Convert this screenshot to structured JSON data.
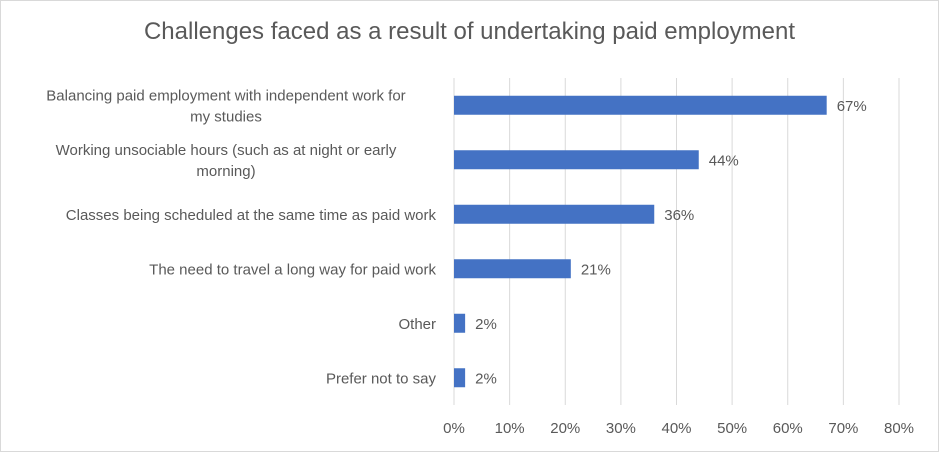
{
  "chart_data": {
    "type": "bar",
    "orientation": "horizontal",
    "title": "Challenges faced as a result of undertaking paid employment",
    "categories": [
      "Balancing paid employment with independent work for my studies",
      "Working unsociable hours (such as at night or early morning)",
      "Classes being scheduled at the same time as paid work",
      "The need to travel a long way for paid work",
      "Other",
      "Prefer not to say"
    ],
    "category_label_lines": [
      [
        "Balancing paid employment with independent work for",
        "my studies"
      ],
      [
        "Working unsociable hours (such as at night or early",
        "morning)"
      ],
      [
        "Classes being scheduled at the same time as paid work"
      ],
      [
        "The need to travel a long way for paid work"
      ],
      [
        "Other"
      ],
      [
        "Prefer not to say"
      ]
    ],
    "values": [
      67,
      44,
      36,
      21,
      2,
      2
    ],
    "data_labels": [
      "67%",
      "44%",
      "36%",
      "21%",
      "2%",
      "2%"
    ],
    "xlim": [
      0,
      80
    ],
    "xticks": [
      0,
      10,
      20,
      30,
      40,
      50,
      60,
      70,
      80
    ],
    "xtick_labels": [
      "0%",
      "10%",
      "20%",
      "30%",
      "40%",
      "50%",
      "60%",
      "70%",
      "80%"
    ],
    "grid": "vertical",
    "legend": "none",
    "bar_color": "#4472c4",
    "gridline_color": "#d9d9d9"
  }
}
